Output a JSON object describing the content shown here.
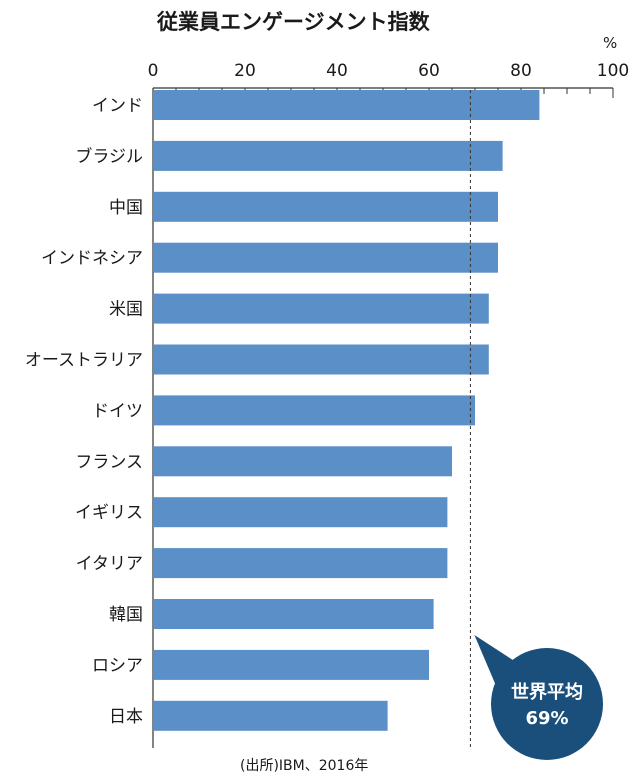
{
  "chart_data": {
    "type": "bar",
    "orientation": "horizontal",
    "title": "従業員エンゲージメント指数",
    "unit": "%",
    "categories": [
      "インド",
      "ブラジル",
      "中国",
      "インドネシア",
      "米国",
      "オーストラリア",
      "ドイツ",
      "フランス",
      "イギリス",
      "イタリア",
      "韓国",
      "ロシア",
      "日本"
    ],
    "values": [
      84,
      76,
      75,
      75,
      73,
      73,
      70,
      65,
      64,
      64,
      61,
      60,
      51
    ],
    "xlim": [
      0,
      100
    ],
    "xticks": [
      "0",
      "20",
      "40",
      "60",
      "80",
      "100"
    ],
    "bar_color": "#5b8fc7",
    "reference": {
      "label": "世界平均",
      "value_label": "69%",
      "value": 69,
      "bubble_color": "#1a4f7c"
    },
    "source": "(出所)IBM、2016年"
  }
}
